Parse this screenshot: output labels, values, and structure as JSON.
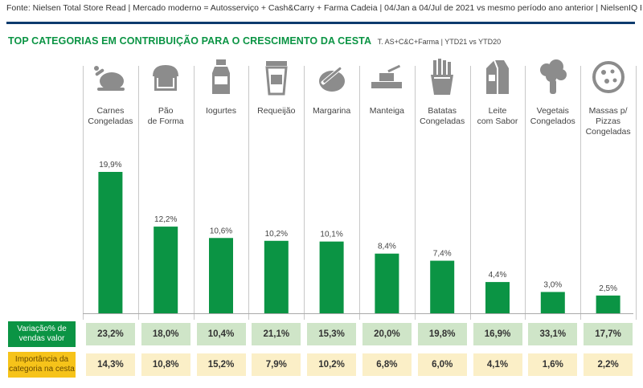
{
  "source": "Fonte: Nielsen Total Store Read  | Mercado moderno = Autosserviço + Cash&Carry + Farma Cadeia | 04/Jan a 04/Jul de 2021 vs mesmo período ano anterior | NielsenIQ Brasil",
  "title": "TOP CATEGORIAS EM CONTRIBUIÇÃO PARA O CRESCIMENTO DA CESTA",
  "subtitle": "T. AS+C&C+Farma | YTD21 vs YTD20",
  "colors": {
    "bar": "#0b9444",
    "header_line": "#0d3b6e",
    "icon": "#8c8c8c",
    "variation_label_bg": "#0b9444",
    "variation_cell_bg": "#cfe5c8",
    "importance_label_bg": "#f6c31a",
    "importance_cell_bg": "#fbefc7"
  },
  "chart_data": {
    "type": "bar",
    "title": "TOP CATEGORIAS EM CONTRIBUIÇÃO PARA O CRESCIMENTO DA CESTA",
    "categories": [
      "Carnes\nCongeladas",
      "Pão\nde Forma",
      "Iogurtes",
      "Requeijão",
      "Margarina",
      "Manteiga",
      "Batatas\nCongeladas",
      "Leite\ncom Sabor",
      "Vegetais\nCongelados",
      "Massas p/\nPizzas\nCongeladas"
    ],
    "icons": [
      "roast-chicken-icon",
      "bread-loaf-icon",
      "yogurt-bottle-icon",
      "cream-cheese-cup-icon",
      "margarine-knife-icon",
      "butter-dish-icon",
      "french-fries-icon",
      "milk-carton-icon",
      "broccoli-icon",
      "pizza-icon"
    ],
    "values": [
      19.9,
      12.2,
      10.6,
      10.2,
      10.1,
      8.4,
      7.4,
      4.4,
      3.0,
      2.5
    ],
    "value_labels": [
      "19,9%",
      "12,2%",
      "10,6%",
      "10,2%",
      "10,1%",
      "8,4%",
      "7,4%",
      "4,4%",
      "3,0%",
      "2,5%"
    ],
    "ylim": [
      0,
      20
    ],
    "grid": false,
    "rows": [
      {
        "label": "Variação% de\nvendas valor",
        "values": [
          "23,2%",
          "18,0%",
          "10,4%",
          "21,1%",
          "15,3%",
          "20,0%",
          "19,8%",
          "16,9%",
          "33,1%",
          "17,7%"
        ]
      },
      {
        "label": "Importância da\ncategoria na cesta",
        "values": [
          "14,3%",
          "10,8%",
          "15,2%",
          "7,9%",
          "10,2%",
          "6,8%",
          "6,0%",
          "4,1%",
          "1,6%",
          "2,2%"
        ]
      }
    ]
  }
}
